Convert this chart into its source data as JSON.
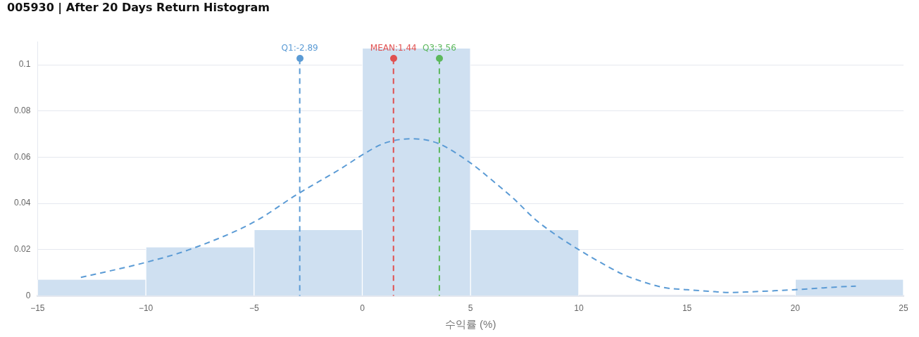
{
  "chart_data": {
    "type": "histogram",
    "title": "005930 | After 20 Days Return Histogram",
    "xlabel": "수익률 (%)",
    "bins": [
      -15,
      -10,
      -5,
      0,
      5,
      10,
      15,
      20,
      25
    ],
    "values": [
      0.007,
      0.021,
      0.0285,
      0.107,
      0.0285,
      0,
      0,
      0.007
    ],
    "color": "#cfe0f1",
    "series": [
      {
        "type": "line",
        "color": "#5b9bd5",
        "line_style": "dashed",
        "marker": "none",
        "x": [
          -13,
          -10,
          -8,
          -5,
          -3,
          -1,
          0,
          1,
          2.3,
          3.5,
          5,
          6,
          7,
          8,
          9,
          10,
          11,
          12,
          13,
          14,
          15,
          16,
          17,
          18,
          19,
          20,
          21,
          22,
          22.8
        ],
        "values": [
          0.008,
          0.0145,
          0.02,
          0.032,
          0.044,
          0.055,
          0.061,
          0.066,
          0.068,
          0.066,
          0.0575,
          0.05,
          0.042,
          0.033,
          0.026,
          0.02,
          0.0145,
          0.0095,
          0.006,
          0.0035,
          0.0027,
          0.002,
          0.0015,
          0.0018,
          0.0022,
          0.0027,
          0.0033,
          0.0039,
          0.0042
        ]
      }
    ],
    "ref_lines": [
      {
        "axis": "x",
        "value": -2.89,
        "label": "Q1:-2.89",
        "color": "#5b9bd5",
        "line_style": "dashed"
      },
      {
        "axis": "x",
        "value": 1.44,
        "label": "MEAN:1.44",
        "color": "#e05050",
        "line_style": "dashed"
      },
      {
        "axis": "x",
        "value": 3.56,
        "label": "Q3:3.56",
        "color": "#5cb85c",
        "line_style": "dashed"
      }
    ],
    "xlim": [
      -15,
      25
    ],
    "xticks": [
      {
        "value": -15,
        "label": "−15"
      },
      {
        "value": -10,
        "label": "−10"
      },
      {
        "value": -5,
        "label": "−5"
      },
      0,
      5,
      10,
      15,
      20,
      25
    ],
    "ylim": [
      0,
      0.11
    ],
    "yticks": [
      0,
      0.02,
      0.04,
      0.06,
      0.08,
      0.1
    ],
    "grid": "y",
    "legend": false
  }
}
